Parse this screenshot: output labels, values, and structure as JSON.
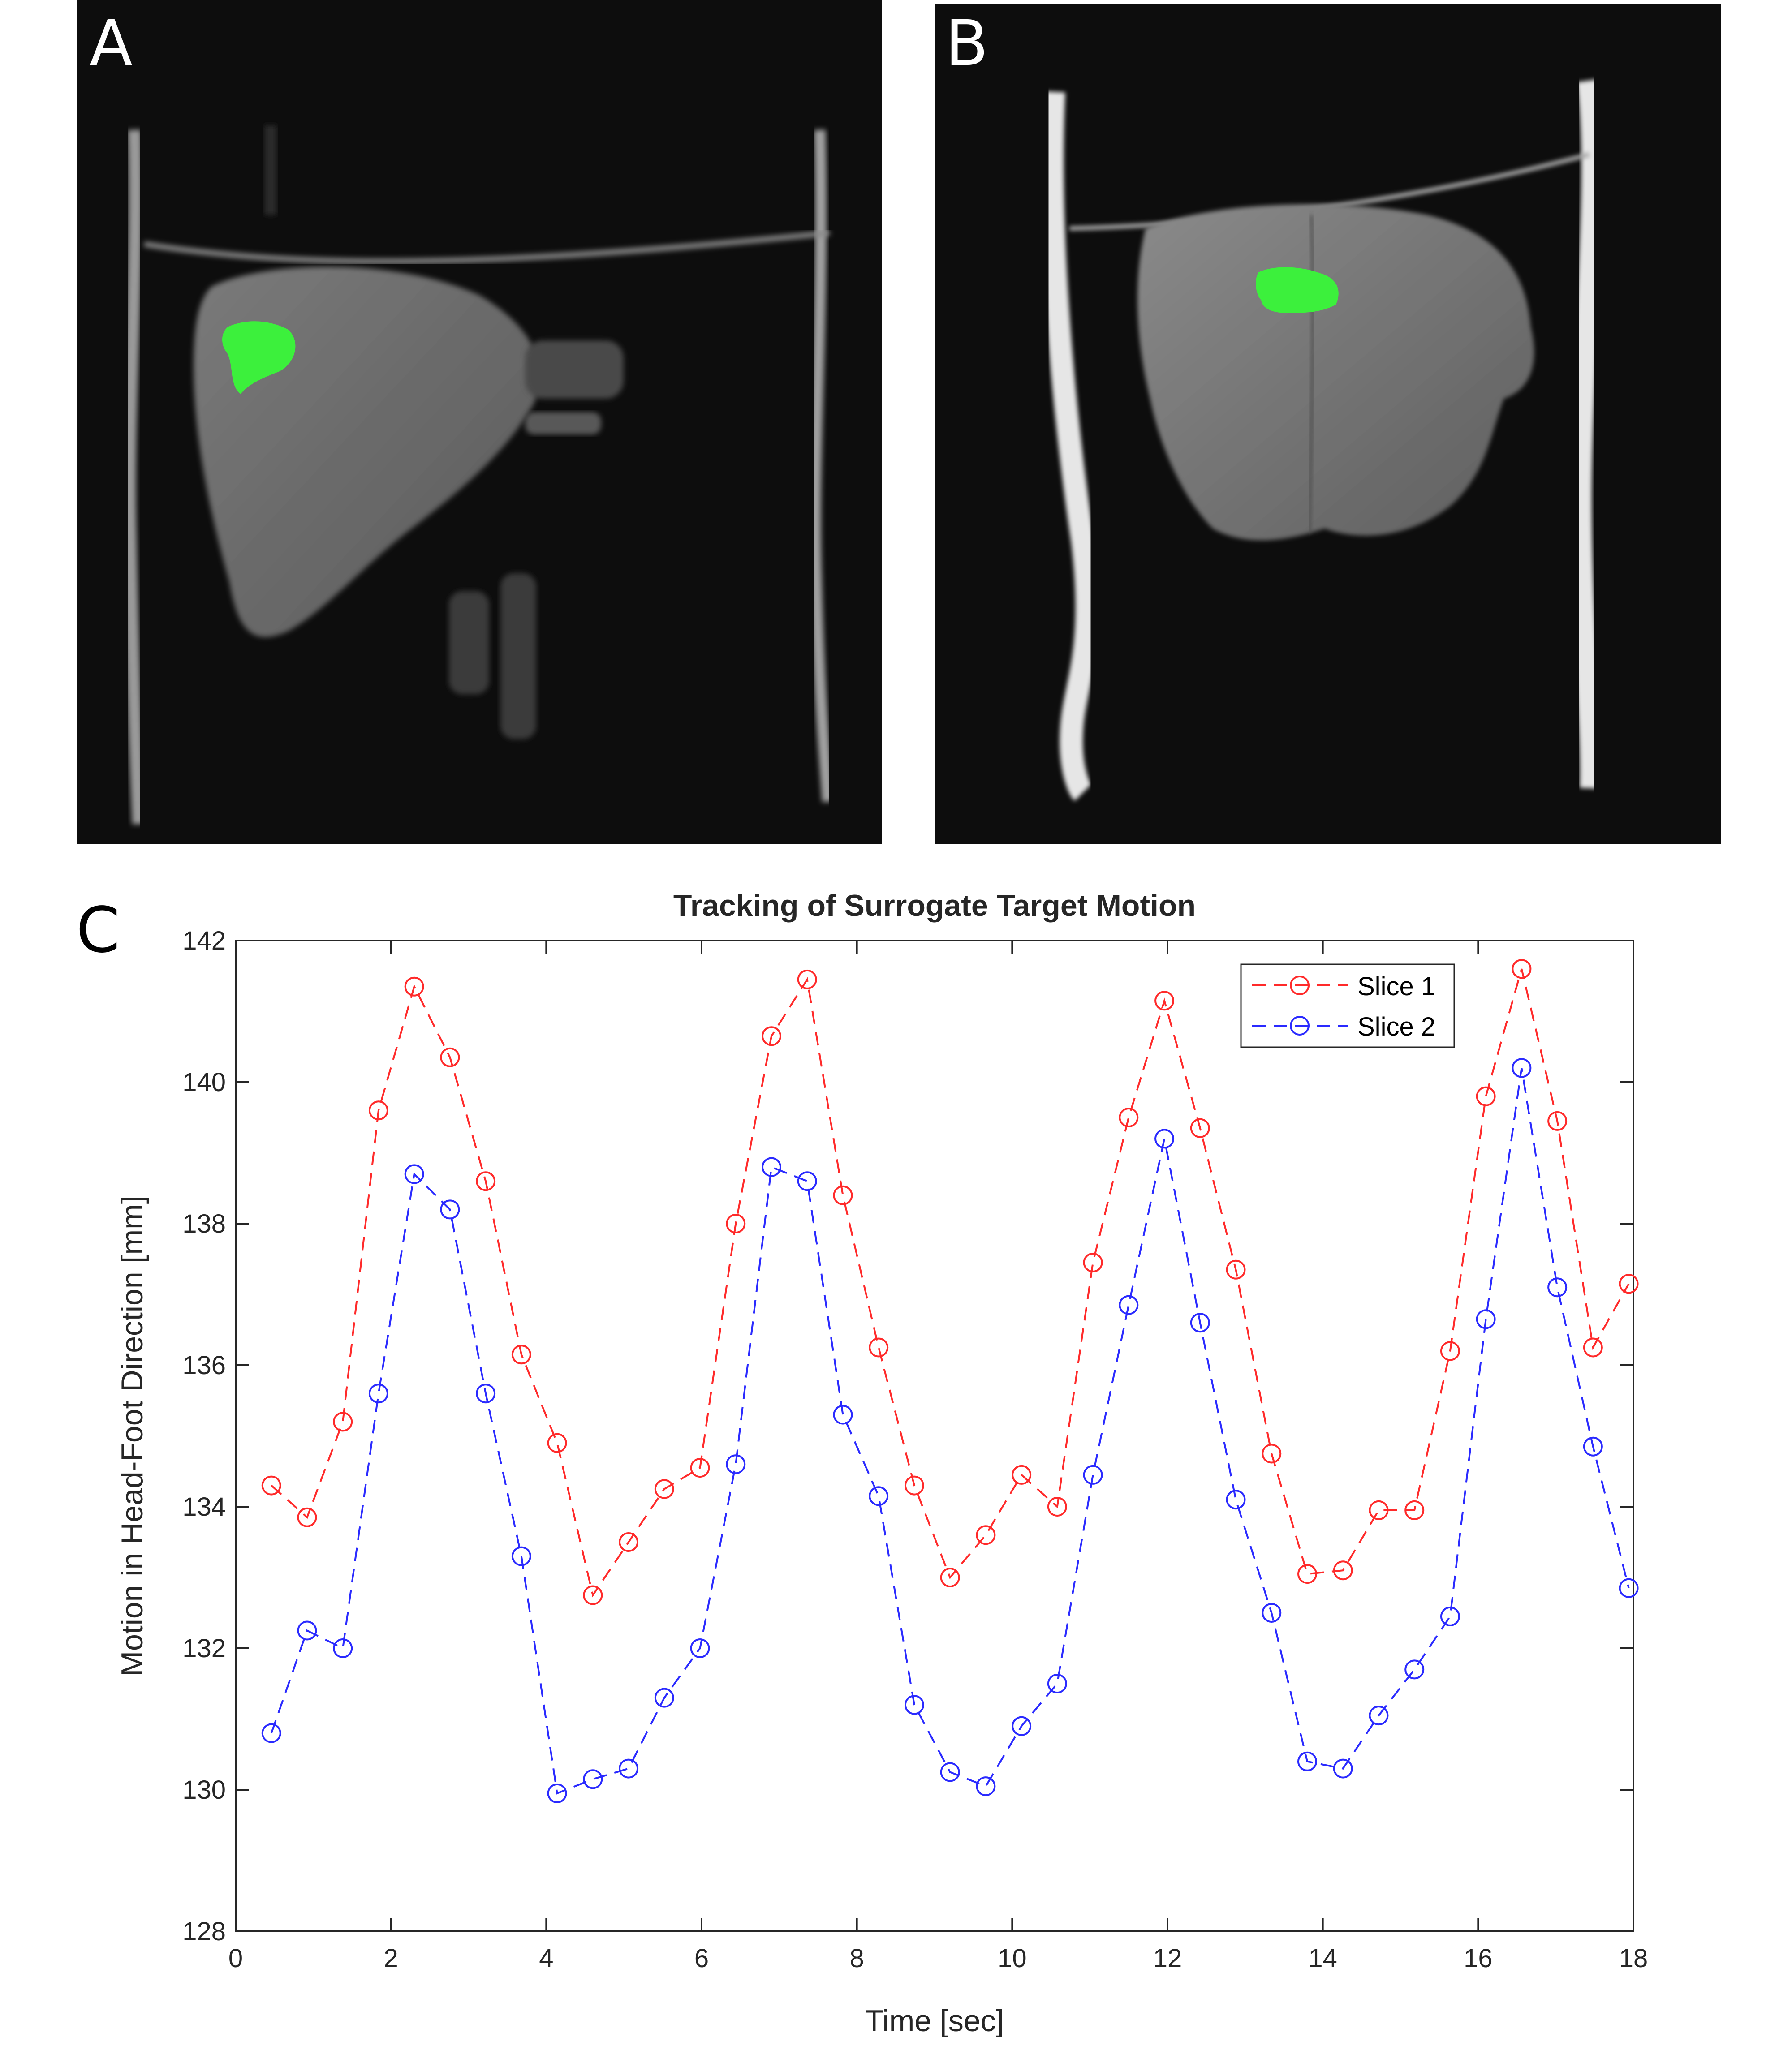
{
  "panels": {
    "a": {
      "label": "A"
    },
    "b": {
      "label": "B"
    },
    "c": {
      "label": "C"
    }
  },
  "colors": {
    "slice1": "#ff2a2a",
    "slice2": "#2a2aff",
    "tumor": "#3cf03c",
    "mri_background": "#0d0d0d",
    "tissue": "#6e6e6e"
  },
  "chart_data": {
    "type": "line",
    "title": "Tracking of Surrogate Target Motion",
    "xlabel": "Time [sec]",
    "ylabel": "Motion in Head-Foot Direction [mm]",
    "xlim": [
      0,
      18
    ],
    "ylim": [
      128,
      142
    ],
    "xticks": [
      0,
      2,
      4,
      6,
      8,
      10,
      12,
      14,
      16,
      18
    ],
    "yticks": [
      128,
      130,
      132,
      134,
      136,
      138,
      140,
      142
    ],
    "legend_position": "top-right",
    "grid": false,
    "x": [
      0.46,
      0.92,
      1.38,
      1.84,
      2.3,
      2.76,
      3.22,
      3.68,
      4.14,
      4.6,
      5.06,
      5.52,
      5.98,
      6.44,
      6.9,
      7.36,
      7.82,
      8.28,
      8.74,
      9.2,
      9.66,
      10.12,
      10.58,
      11.04,
      11.5,
      11.96,
      12.42,
      12.88,
      13.34,
      13.8,
      14.26,
      14.72,
      15.18,
      15.64,
      16.1,
      16.56,
      17.02,
      17.48,
      17.94
    ],
    "series": [
      {
        "name": "Slice 1",
        "style": "dashed-circle",
        "values": [
          134.3,
          133.85,
          135.2,
          139.6,
          141.35,
          140.35,
          138.6,
          136.15,
          134.9,
          132.75,
          133.5,
          134.25,
          134.55,
          138.0,
          140.65,
          141.45,
          138.4,
          136.25,
          134.3,
          133.0,
          133.6,
          134.45,
          134.0,
          137.45,
          139.5,
          141.15,
          139.35,
          137.35,
          134.75,
          133.05,
          133.1,
          133.95,
          133.95,
          136.2,
          139.8,
          141.6,
          139.45,
          136.25,
          137.15
        ]
      },
      {
        "name": "Slice 2",
        "style": "dashed-circle",
        "values": [
          130.8,
          132.25,
          132.0,
          135.6,
          138.7,
          138.2,
          135.6,
          133.3,
          129.95,
          130.15,
          130.3,
          131.3,
          132.0,
          134.6,
          138.8,
          138.6,
          135.3,
          134.15,
          131.2,
          130.25,
          130.05,
          130.9,
          131.5,
          134.45,
          136.85,
          139.2,
          136.6,
          134.1,
          132.5,
          130.4,
          130.3,
          131.05,
          131.7,
          132.45,
          136.65,
          140.2,
          137.1,
          134.85,
          132.85
        ]
      }
    ]
  }
}
